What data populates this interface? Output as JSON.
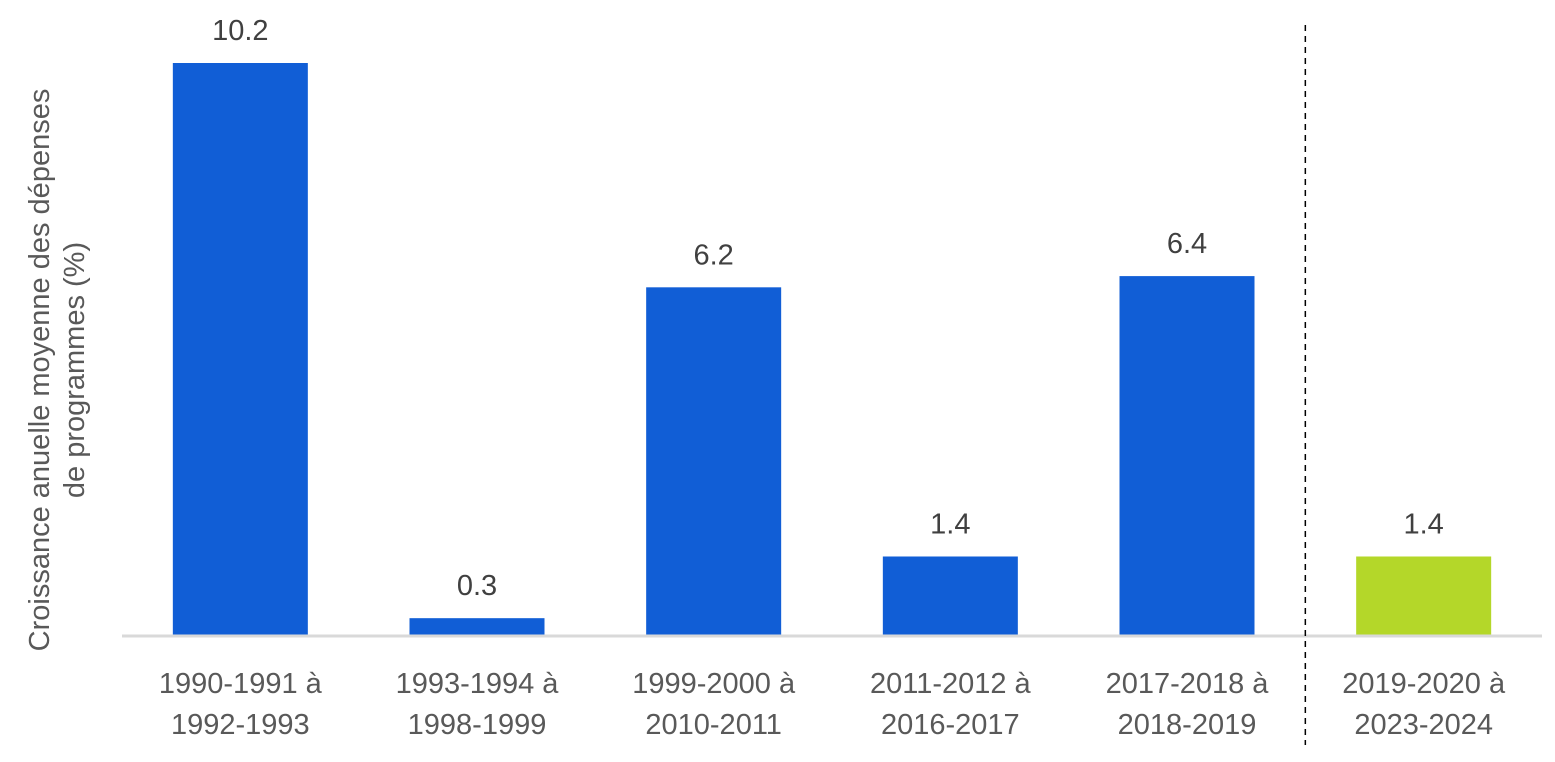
{
  "chart_data": {
    "type": "bar",
    "title": "",
    "xlabel": "",
    "ylabel": [
      "Croissance anuelle moyenne des dépenses",
      "de programmes  (%)"
    ],
    "ylim": [
      0,
      10.2
    ],
    "grid": false,
    "categories": [
      [
        "1990-1991 à",
        "1992-1993"
      ],
      [
        "1993-1994 à",
        "1998-1999"
      ],
      [
        "1999-2000 à",
        "2010-2011"
      ],
      [
        "2011-2012 à",
        "2016-2017"
      ],
      [
        "2017-2018 à",
        "2018-2019"
      ],
      [
        "2019-2020 à",
        "2023-2024"
      ]
    ],
    "values": [
      10.2,
      0.3,
      6.2,
      1.4,
      6.4,
      1.4
    ],
    "value_labels": [
      "10.2",
      "0.3",
      "6.2",
      "1.4",
      "6.4",
      "1.4"
    ],
    "bar_colors": [
      "#115ed6",
      "#115ed6",
      "#115ed6",
      "#115ed6",
      "#115ed6",
      "#b4d729"
    ],
    "axis_color": "#d9d9d9",
    "separator": {
      "style": "dashed",
      "between_categories": [
        4,
        5
      ],
      "color": "#000000"
    }
  }
}
